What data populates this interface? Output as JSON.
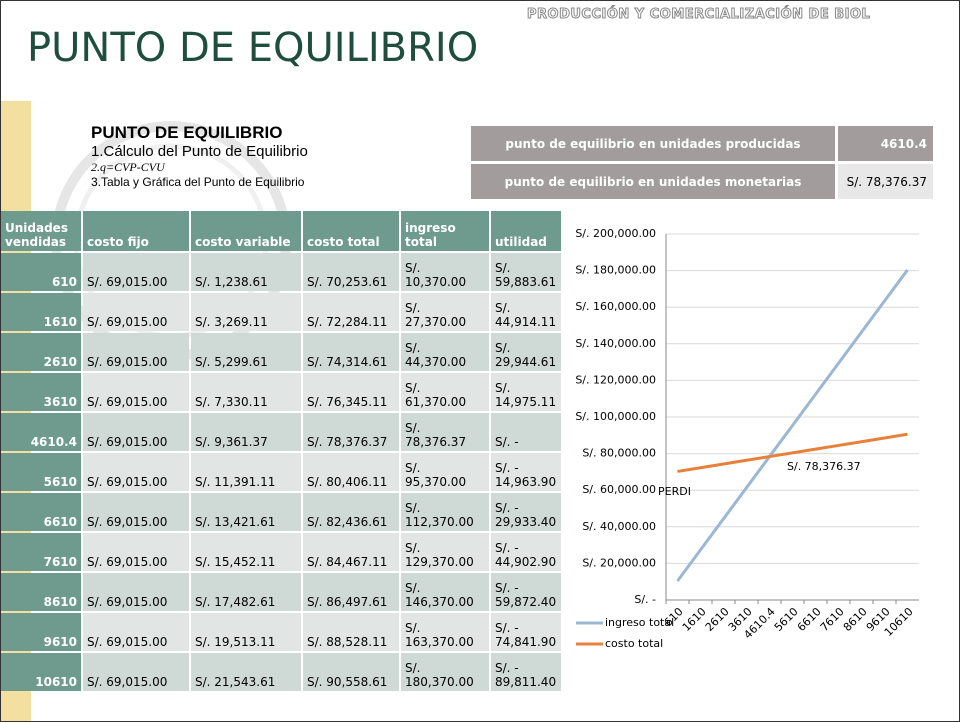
{
  "header": {
    "kicker": "PRODUCCIÓN Y COMERCIALIZACIÓN DE BIOL",
    "title": "PUNTO DE EQUILIBRIO"
  },
  "outline": {
    "heading": "PUNTO DE EQUILIBRIO",
    "items": [
      "1.Cálculo del Punto de Equilibrio",
      "2.q=CVP-CVU",
      "3.Tabla y Gráfica del Punto de Equilibrio"
    ]
  },
  "summary": [
    {
      "label": "punto de equilibrio en unidades producidas",
      "value": "4610.4"
    },
    {
      "label": "punto de equilibrio en unidades monetarias",
      "value": "S/. 78,376.37"
    }
  ],
  "table": {
    "columns": [
      "Unidades vendidas",
      "costo fijo",
      "costo variable",
      "costo total",
      "ingreso total",
      "utilidad"
    ],
    "rows": [
      [
        "610",
        "S/. 69,015.00",
        "S/. 1,238.61",
        "S/. 70,253.61",
        "S/. 10,370.00",
        "S/. 59,883.61"
      ],
      [
        "1610",
        "S/. 69,015.00",
        "S/. 3,269.11",
        "S/. 72,284.11",
        "S/. 27,370.00",
        "S/. 44,914.11"
      ],
      [
        "2610",
        "S/. 69,015.00",
        "S/. 5,299.61",
        "S/. 74,314.61",
        "S/. 44,370.00",
        "S/. 29,944.61"
      ],
      [
        "3610",
        "S/. 69,015.00",
        "S/. 7,330.11",
        "S/. 76,345.11",
        "S/. 61,370.00",
        "S/. 14,975.11"
      ],
      [
        "4610.4",
        "S/. 69,015.00",
        "S/. 9,361.37",
        "S/. 78,376.37",
        "S/. 78,376.37",
        "S/. -"
      ],
      [
        "5610",
        "S/. 69,015.00",
        "S/. 11,391.11",
        "S/. 80,406.11",
        "S/. 95,370.00",
        "S/. - 14,963.90"
      ],
      [
        "6610",
        "S/. 69,015.00",
        "S/. 13,421.61",
        "S/. 82,436.61",
        "S/. 112,370.00",
        "S/. - 29,933.40"
      ],
      [
        "7610",
        "S/. 69,015.00",
        "S/. 15,452.11",
        "S/. 84,467.11",
        "S/. 129,370.00",
        "S/. - 44,902.90"
      ],
      [
        "8610",
        "S/. 69,015.00",
        "S/. 17,482.61",
        "S/. 86,497.61",
        "S/. 146,370.00",
        "S/. - 59,872.40"
      ],
      [
        "9610",
        "S/. 69,015.00",
        "S/. 19,513.11",
        "S/. 88,528.11",
        "S/. 163,370.00",
        "S/. - 74,841.90"
      ],
      [
        "10610",
        "S/. 69,015.00",
        "S/. 21,543.61",
        "S/. 90,558.61",
        "S/. 180,370.00",
        "S/. - 89,811.40"
      ]
    ]
  },
  "chart_data": {
    "type": "line",
    "categories": [
      "610",
      "1610",
      "2610",
      "3610",
      "4610.4",
      "5610",
      "6610",
      "7610",
      "8610",
      "9610",
      "10610"
    ],
    "series": [
      {
        "name": "ingreso total",
        "color": "#9bb7d4",
        "values": [
          10370,
          27370,
          44370,
          61370,
          78376.37,
          95370,
          112370,
          129370,
          146370,
          163370,
          180370
        ]
      },
      {
        "name": "costo total",
        "color": "#e8803c",
        "values": [
          70253.61,
          72284.11,
          74314.61,
          76345.11,
          78376.37,
          80406.11,
          82436.61,
          84467.11,
          86497.61,
          88528.11,
          90558.61
        ]
      }
    ],
    "ylim": [
      0,
      200000
    ],
    "yticks": [
      {
        "value": 0,
        "label": "S/. -"
      },
      {
        "value": 20000,
        "label": "S/. 20,000.00"
      },
      {
        "value": 40000,
        "label": "S/. 40,000.00"
      },
      {
        "value": 60000,
        "label": "S/. 60,000.00"
      },
      {
        "value": 80000,
        "label": "S/. 80,000.00"
      },
      {
        "value": 100000,
        "label": "S/. 100,000.00"
      },
      {
        "value": 120000,
        "label": "S/. 120,000.00"
      },
      {
        "value": 140000,
        "label": "S/. 140,000.00"
      },
      {
        "value": 160000,
        "label": "S/. 160,000.00"
      },
      {
        "value": 180000,
        "label": "S/. 180,000.00"
      },
      {
        "value": 200000,
        "label": "S/. 200,000.00"
      }
    ],
    "grid": true,
    "legend": "left",
    "annotations": [
      "S/. 78,376.37",
      "PERDI"
    ]
  }
}
